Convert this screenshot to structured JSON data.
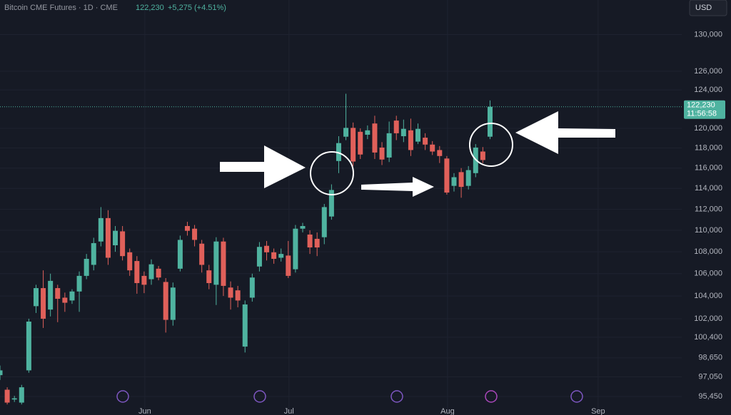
{
  "header": {
    "symbol": "Bitcoin CME Futures · 1D · CME",
    "last": "122,230",
    "change": "+5,275 (+4.51%)",
    "currency": "USD"
  },
  "chart_data": {
    "type": "candlestick",
    "log_scale": true,
    "grid": true,
    "up_color": "#4fb3a0",
    "down_color": "#e0605a",
    "categories": [
      null,
      null,
      null,
      null,
      null,
      null,
      null,
      null,
      null,
      null,
      null,
      null,
      null,
      null,
      null,
      null,
      null,
      null,
      null,
      null,
      null,
      null,
      null,
      null,
      null,
      null,
      null,
      null,
      null,
      null,
      null,
      null,
      null,
      null,
      null,
      null,
      null,
      null,
      null,
      null,
      null,
      null,
      null,
      null,
      null,
      null,
      null,
      null,
      null,
      null,
      null,
      null,
      null,
      null,
      null,
      null,
      null,
      null,
      null,
      null,
      null,
      null,
      null,
      null,
      null,
      null,
      null,
      null,
      null
    ],
    "open": [
      97200,
      96000,
      95200,
      94950,
      97600,
      103100,
      104700,
      102800,
      104700,
      103850,
      103600,
      104400,
      105800,
      106800,
      108950,
      111150,
      108600,
      109900,
      107950,
      107150,
      105800,
      105500,
      106450,
      105250,
      101900,
      106450,
      110400,
      110150,
      108750,
      106300,
      105000,
      108950,
      104750,
      104500,
      99600,
      103850,
      106650,
      108550,
      107950,
      107450,
      107650,
      106400,
      110150,
      109600,
      109200,
      109350,
      111300,
      116700,
      119150,
      120050,
      119650,
      119350,
      120500,
      118050,
      117050,
      120800,
      119200,
      119800,
      118650,
      119050,
      118350,
      117800,
      116950,
      114250,
      115600,
      114250,
      115500,
      117650,
      119150
    ],
    "high": [
      98000,
      96200,
      95500,
      96400,
      102000,
      105000,
      106300,
      106000,
      105000,
      104300,
      104600,
      106200,
      107800,
      109300,
      112200,
      111900,
      110400,
      110400,
      108300,
      107600,
      106200,
      107300,
      106700,
      105600,
      105200,
      109500,
      110800,
      110500,
      109100,
      106800,
      109350,
      109300,
      105300,
      104900,
      103600,
      106000,
      108900,
      109000,
      108300,
      108300,
      109000,
      110500,
      110700,
      110000,
      109800,
      112500,
      114400,
      119200,
      123600,
      120600,
      120000,
      120300,
      121300,
      118600,
      120700,
      121300,
      120900,
      121000,
      120500,
      119500,
      118700,
      118200,
      117200,
      115500,
      116000,
      116200,
      118400,
      118100,
      122900
    ],
    "low": [
      96800,
      94800,
      95000,
      94800,
      97400,
      102500,
      101200,
      102200,
      101700,
      102600,
      103300,
      102600,
      105500,
      106300,
      108500,
      106800,
      108000,
      107200,
      105800,
      104200,
      104250,
      105000,
      105400,
      100800,
      101400,
      106200,
      109500,
      108500,
      106100,
      104600,
      103200,
      104000,
      102800,
      103000,
      99100,
      103500,
      106200,
      107200,
      106900,
      107100,
      105600,
      106100,
      109800,
      107800,
      107600,
      108700,
      111000,
      115500,
      118800,
      116200,
      116900,
      118900,
      116900,
      116300,
      116600,
      118800,
      118600,
      117200,
      118400,
      117800,
      117300,
      116500,
      113400,
      113700,
      113100,
      113900,
      115100,
      116500,
      118900
    ],
    "close": [
      97600,
      94950,
      95300,
      96200,
      101750,
      104700,
      102000,
      105350,
      103750,
      103400,
      104400,
      105800,
      107350,
      108800,
      111150,
      107450,
      109950,
      107600,
      106300,
      105150,
      105000,
      106850,
      105650,
      101900,
      104750,
      109100,
      109950,
      109100,
      106800,
      105150,
      108950,
      104900,
      103850,
      103600,
      103250,
      105650,
      108450,
      107950,
      107350,
      107800,
      105800,
      110150,
      110400,
      108400,
      108400,
      112200,
      113850,
      118500,
      120050,
      116650,
      117350,
      119800,
      117550,
      116850,
      119500,
      119500,
      119950,
      117800,
      119950,
      118350,
      117650,
      117200,
      113600,
      115100,
      114150,
      115800,
      118050,
      116800,
      122230
    ],
    "last_label": "122,230",
    "countdown": "11:56:58",
    "ylim": [
      93950,
      133900
    ],
    "yticks": [
      {
        "value": 130000,
        "label": "130,000"
      },
      {
        "value": 126000,
        "label": "126,000"
      },
      {
        "value": 124000,
        "label": "124,000"
      },
      {
        "value": 120000,
        "label": "120,000"
      },
      {
        "value": 118000,
        "label": "118,000"
      },
      {
        "value": 116000,
        "label": "116,000"
      },
      {
        "value": 114000,
        "label": "114,000"
      },
      {
        "value": 112000,
        "label": "112,000"
      },
      {
        "value": 110000,
        "label": "110,000"
      },
      {
        "value": 108000,
        "label": "108,000"
      },
      {
        "value": 106000,
        "label": "106,000"
      },
      {
        "value": 104000,
        "label": "104,000"
      },
      {
        "value": 102000,
        "label": "102,000"
      },
      {
        "value": 100400,
        "label": "100,400"
      },
      {
        "value": 98650,
        "label": "98,650"
      },
      {
        "value": 97050,
        "label": "97,050"
      },
      {
        "value": 95450,
        "label": "95,450"
      }
    ],
    "xlim": [
      0,
      94.6
    ],
    "xticks": [
      {
        "value": 20.1,
        "label": "Jun"
      },
      {
        "value": 40.1,
        "label": "Jul"
      },
      {
        "value": 62.1,
        "label": "Aug"
      },
      {
        "value": 83,
        "label": "Sep"
      }
    ]
  }
}
